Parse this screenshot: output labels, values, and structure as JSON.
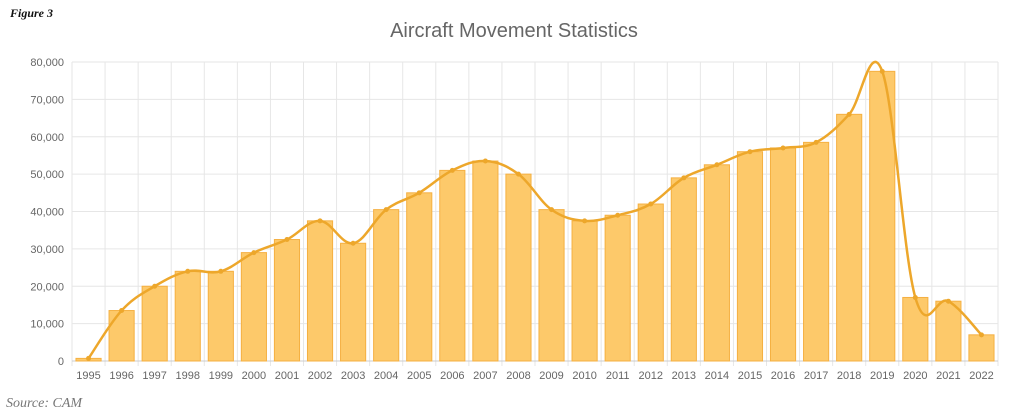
{
  "figure_label": "Figure 3",
  "source": "Source: CAM",
  "chart_data": {
    "type": "bar",
    "title": "Aircraft Movement Statistics",
    "xlabel": "",
    "ylabel": "",
    "ylim": [
      0,
      80000
    ],
    "yticks": [
      "0",
      "10,000",
      "20,000",
      "30,000",
      "40,000",
      "50,000",
      "60,000",
      "70,000",
      "80,000"
    ],
    "grid": true,
    "categories": [
      "1995",
      "1996",
      "1997",
      "1998",
      "1999",
      "2000",
      "2001",
      "2002",
      "2003",
      "2004",
      "2005",
      "2006",
      "2007",
      "2008",
      "2009",
      "2010",
      "2011",
      "2012",
      "2013",
      "2014",
      "2015",
      "2016",
      "2017",
      "2018",
      "2019",
      "2020",
      "2021",
      "2022"
    ],
    "series": [
      {
        "values": [
          700,
          13500,
          20000,
          24000,
          24000,
          29000,
          32500,
          37500,
          31500,
          40500,
          45000,
          51000,
          53500,
          50000,
          40500,
          37500,
          39000,
          42000,
          49000,
          52500,
          56000,
          57000,
          58500,
          66000,
          77500,
          17000,
          16000,
          7000
        ],
        "overlay": "smoothed-line"
      }
    ],
    "colors": {
      "bar_fill": "#FDC96A",
      "bar_edge": "#F5B041",
      "line": "#EDA72B",
      "grid": "#E6E6E6"
    }
  }
}
